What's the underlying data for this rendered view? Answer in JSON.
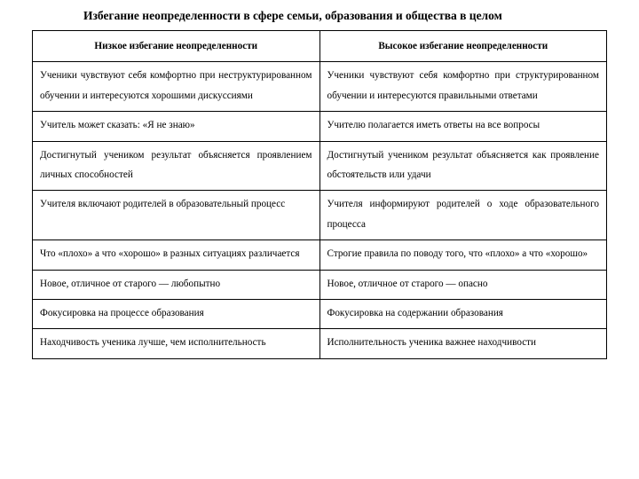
{
  "title": "Избегание неопределенности в сфере семьи, образования и общества в целом",
  "table": {
    "headers": {
      "low": "Низкое избегание неопределенности",
      "high": "Высокое избегание неопределенности"
    },
    "rows": [
      {
        "low": "Ученики чувствуют себя комфортно при неструктурированном обучении и интересуются хорошими дискуссиями",
        "high": "Ученики чувствуют себя комфортно при структурированном обучении и интересуются правильными ответами"
      },
      {
        "low": "Учитель может сказать: «Я не знаю»",
        "high": "Учителю полагается иметь ответы на все вопросы"
      },
      {
        "low": "Достигнутый учеником результат объясняется проявлением личных способностей",
        "high": "Достигнутый учеником результат объясняется как проявление обстоятельств или удачи"
      },
      {
        "low": "Учителя включают родителей в образовательный процесс",
        "high": "Учителя информируют родителей о ходе образовательного процесса"
      },
      {
        "low": "Что «плохо» а что «хорошо» в разных ситуациях различается",
        "high": "Строгие правила по поводу того, что «плохо» а что «хорошо»"
      },
      {
        "low": "Новое, отличное от старого — любопытно",
        "high": "Новое, отличное от старого — опасно"
      },
      {
        "low": "Фокусировка на процессе образования",
        "high": "Фокусировка на содержании образования"
      },
      {
        "low": "Находчивость ученика лучше, чем исполнительность",
        "high": "Исполнительность ученика важнее находчивости"
      }
    ]
  }
}
